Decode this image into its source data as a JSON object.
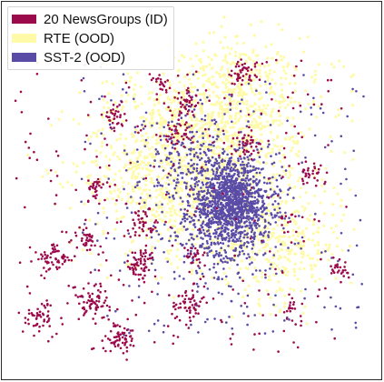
{
  "chart_data": {
    "type": "scatter",
    "title": "",
    "xlabel": "",
    "ylabel": "",
    "axes_visible": false,
    "grid": false,
    "legend_position": "top-left",
    "series": [
      {
        "name": "20 NewsGroups (ID)",
        "color": "#9b0a4b",
        "clusters": [
          {
            "x": 0.64,
            "y": 0.82,
            "spread": 0.018,
            "n": 45
          },
          {
            "x": 0.42,
            "y": 0.79,
            "spread": 0.014,
            "n": 20
          },
          {
            "x": 0.49,
            "y": 0.74,
            "spread": 0.018,
            "n": 35
          },
          {
            "x": 0.29,
            "y": 0.7,
            "spread": 0.016,
            "n": 30
          },
          {
            "x": 0.46,
            "y": 0.65,
            "spread": 0.02,
            "n": 40
          },
          {
            "x": 0.65,
            "y": 0.63,
            "spread": 0.018,
            "n": 35
          },
          {
            "x": 0.82,
            "y": 0.54,
            "spread": 0.016,
            "n": 30
          },
          {
            "x": 0.24,
            "y": 0.51,
            "spread": 0.016,
            "n": 30
          },
          {
            "x": 0.37,
            "y": 0.41,
            "spread": 0.02,
            "n": 45
          },
          {
            "x": 0.21,
            "y": 0.37,
            "spread": 0.016,
            "n": 35
          },
          {
            "x": 0.51,
            "y": 0.32,
            "spread": 0.016,
            "n": 25
          },
          {
            "x": 0.13,
            "y": 0.31,
            "spread": 0.022,
            "n": 55
          },
          {
            "x": 0.36,
            "y": 0.3,
            "spread": 0.022,
            "n": 60
          },
          {
            "x": 0.23,
            "y": 0.2,
            "spread": 0.025,
            "n": 70
          },
          {
            "x": 0.49,
            "y": 0.19,
            "spread": 0.022,
            "n": 55
          },
          {
            "x": 0.09,
            "y": 0.16,
            "spread": 0.02,
            "n": 45
          },
          {
            "x": 0.31,
            "y": 0.1,
            "spread": 0.022,
            "n": 55
          },
          {
            "x": 0.77,
            "y": 0.17,
            "spread": 0.014,
            "n": 20
          },
          {
            "x": 0.9,
            "y": 0.29,
            "spread": 0.014,
            "n": 25
          },
          {
            "x": 0.76,
            "y": 0.42,
            "spread": 0.012,
            "n": 12
          }
        ],
        "background": {
          "xrange": [
            0.02,
            0.92
          ],
          "yrange": [
            0.06,
            0.86
          ],
          "n": 260
        }
      },
      {
        "name": "RTE (OOD)",
        "color": "#fffaa8",
        "clusters": [
          {
            "x": 0.6,
            "y": 0.72,
            "spread": 0.1,
            "n": 700
          },
          {
            "x": 0.4,
            "y": 0.57,
            "spread": 0.11,
            "n": 500
          },
          {
            "x": 0.75,
            "y": 0.35,
            "spread": 0.08,
            "n": 250
          },
          {
            "x": 0.58,
            "y": 0.5,
            "spread": 0.11,
            "n": 400
          }
        ],
        "background": {
          "xrange": [
            0.25,
            0.95
          ],
          "yrange": [
            0.25,
            0.85
          ],
          "n": 200
        }
      },
      {
        "name": "SST-2 (OOD)",
        "color": "#5a4ca6",
        "clusters": [
          {
            "x": 0.61,
            "y": 0.47,
            "spread": 0.055,
            "n": 1100
          },
          {
            "x": 0.58,
            "y": 0.38,
            "spread": 0.07,
            "n": 300
          },
          {
            "x": 0.52,
            "y": 0.58,
            "spread": 0.08,
            "n": 250
          }
        ],
        "background": {
          "xrange": [
            0.2,
            0.97
          ],
          "yrange": [
            0.1,
            0.82
          ],
          "n": 220
        }
      }
    ]
  }
}
